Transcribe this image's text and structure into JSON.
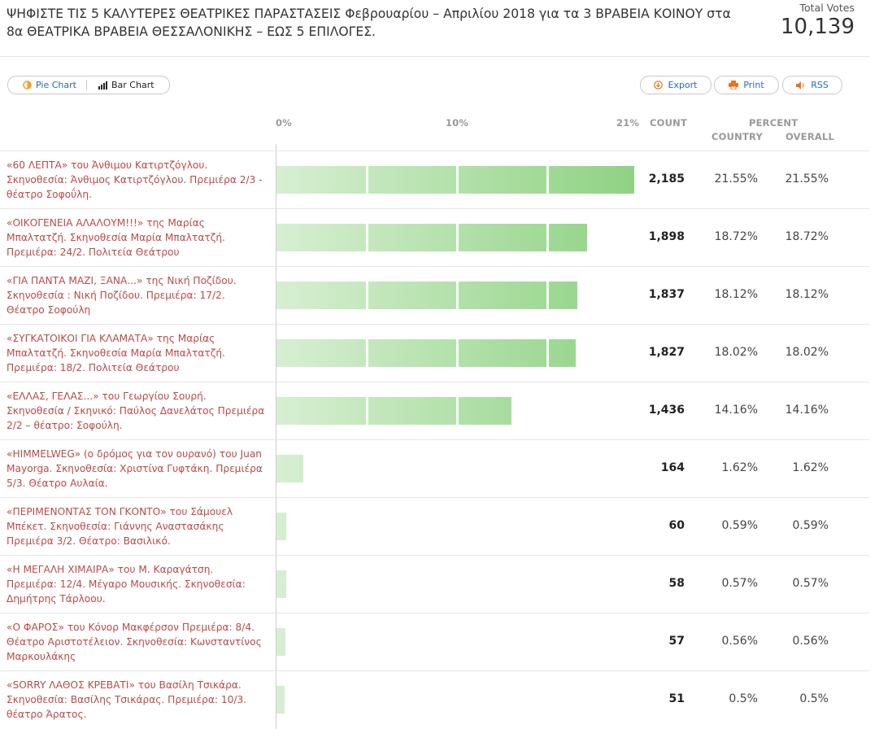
{
  "poll": {
    "title": "ΨΗΦΙΣΤΕ ΤΙΣ 5 ΚΑΛΥΤΕΡΕΣ ΘΕΑΤΡΙΚΕΣ ΠΑΡΑΣΤΑΣΕΙΣ Φεβρουαρίου – Απριλίου 2018 για τα 3 ΒΡΑΒΕΙΑ ΚΟΙΝΟΥ στα 8α ΘΕΑΤΡΙΚΑ ΒΡΑΒΕΙΑ ΘΕΣΣΑΛΟΝΙΚΗΣ – ΕΩΣ 5 ΕΠΙΛΟΓΕΣ.",
    "total_votes_label": "Total Votes",
    "total_votes": "10,139"
  },
  "toolbar": {
    "pie_chart": "Pie Chart",
    "bar_chart": "Bar Chart",
    "export": "Export",
    "print": "Print",
    "rss": "RSS"
  },
  "header": {
    "scale_0": "0%",
    "scale_mid": "10%",
    "scale_max": "21%",
    "count": "COUNT",
    "percent": "PERCENT",
    "country": "COUNTRY",
    "overall": "OVERALL"
  },
  "colors": {
    "accent_link": "#2d67b6",
    "label_red": "#b94a48",
    "bar_light": "#d7efd2",
    "bar_dark": "#8fd283",
    "print_icon": "#e8731c"
  },
  "chart_data": {
    "type": "bar",
    "x_max_percent": 21.55,
    "rows": [
      {
        "label": "«60 ΛΕΠΤΑ» του Άνθιμου Κατιρτζόγλου. Σκηνοθεσία: Άνθιμος Κατιρτζόγλου. Πρεμιέρα 2/3 - θέατρο Σοφοΰλη.",
        "count": "2,185",
        "value": 21.55,
        "country": "21.55%",
        "overall": "21.55%"
      },
      {
        "label": "«ΟΙΚΟΓΕΝΕΙΑ ΑΛΑΛΟΥΜ!!!» της Μαρίας Μπαλτατζή. Σκηνοθεσία Μαρία Μπαλτατζή. Πρεμιέρα: 24/2. Πολιτεία Θεάτρου",
        "count": "1,898",
        "value": 18.72,
        "country": "18.72%",
        "overall": "18.72%"
      },
      {
        "label": "«ΓΙΑ ΠΑΝΤΑ ΜΑΖΙ, ΞΑΝΑ...» της Νική Ποζίδου. Σκηνοθεσία : Νική Ποζίδου. Πρεμιέρα: 17/2. Θέατρο Σοφούλη",
        "count": "1,837",
        "value": 18.12,
        "country": "18.12%",
        "overall": "18.12%"
      },
      {
        "label": "«ΣΥΓΚΑΤΟΙΚΟΙ ΓΙΑ ΚΛΑΜΑΤΑ» της Μαρίας Μπαλτατζή. Σκηνοθεσία Μαρία Μπαλτατζή. Πρεμιέρα: 18/2. Πολιτεία Θεάτρου",
        "count": "1,827",
        "value": 18.02,
        "country": "18.02%",
        "overall": "18.02%"
      },
      {
        "label": "«ΕΛΛΑΣ, ΓΕΛΑΣ...» του Γεωργίου Σουρή. Σκηνοθεσία / Σκηνικό: Παύλος Δανελάτος Πρεμιέρα 2/2 – θέατρο: Σοφούλη.",
        "count": "1,436",
        "value": 14.16,
        "country": "14.16%",
        "overall": "14.16%"
      },
      {
        "label": "«HIMMELWEG» (ο δρόμος για τον ουρανό) του Juan Mayorga. Σκηνοθεσία: Χριστίνα Γυφτάκη. Πρεμιέρα 5/3. Θέατρο Αυλαία.",
        "count": "164",
        "value": 1.62,
        "country": "1.62%",
        "overall": "1.62%"
      },
      {
        "label": "«ΠΕΡΙΜΕΝΟΝΤΑΣ ΤΟΝ ΓΚΟΝΤΟ» του Σάμουελ Μπέκετ. Σκηνοθεσία: Γιάννης Αναστασάκης Πρεμιέρα 3/2. Θέατρο: Βασιλικό.",
        "count": "60",
        "value": 0.59,
        "country": "0.59%",
        "overall": "0.59%"
      },
      {
        "label": "«Η ΜΕΓΑΛΗ ΧΙΜΑΙΡΑ» του Μ. Καραγάτση. Πρεμιέρα: 12/4. Μέγαρο Μουσικής. Σκηνοθεσία: Δημήτρης Τάρλοου.",
        "count": "58",
        "value": 0.57,
        "country": "0.57%",
        "overall": "0.57%"
      },
      {
        "label": "«Ο ΦΑΡΟΣ» του Κόνορ Μακφέρσον Πρεμιέρα: 8/4. Θέατρο Αριστοτέλειον. Σκηνοθεσία: Κωνσταντίνος Μαρκουλάκης",
        "count": "57",
        "value": 0.56,
        "country": "0.56%",
        "overall": "0.56%"
      },
      {
        "label": "«SORRY ΛΑΘΟΣ ΚΡΕΒΑΤΙ» του Βασίλη Τσικάρα. Σκηνοθεσία: Βασίλης Τσικάρας. Πρεμιέρα: 10/3. θέατρο Άρατος.",
        "count": "51",
        "value": 0.5,
        "country": "0.5%",
        "overall": "0.5%"
      }
    ]
  }
}
